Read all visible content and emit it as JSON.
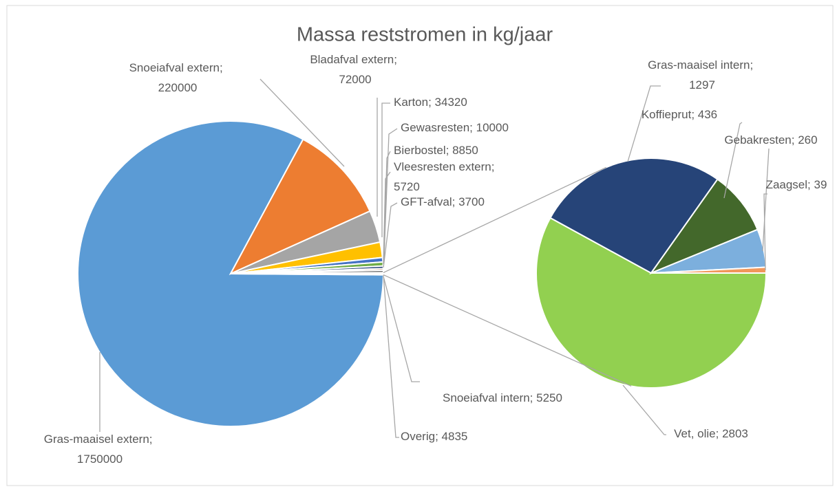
{
  "label_separator": "; ",
  "chart_data": [
    {
      "type": "pie",
      "title": "Massa reststromen in kg/jaar",
      "categories": [
        "Gras-maaisel extern",
        "Snoeiafval extern",
        "Bladafval extern",
        "Karton",
        "Gewasresten",
        "Bierbostel",
        "Vleesresten extern",
        "GFT-afval",
        "Snoeiafval intern",
        "Overig"
      ],
      "values": [
        1750000,
        220000,
        72000,
        34320,
        10000,
        8850,
        5720,
        3700,
        5250,
        4835
      ],
      "colors": [
        "#5b9bd5",
        "#ed7d31",
        "#a5a5a5",
        "#ffc000",
        "#4472c4",
        "#70ad47",
        "#264478",
        "#9e480e",
        "#636363",
        "#ffffff"
      ]
    },
    {
      "type": "pie",
      "categories": [
        "Vet, olie",
        "Gras-maaisel intern",
        "Koffieprut",
        "Gebakresten",
        "Zaagsel"
      ],
      "values": [
        2803,
        1297,
        436,
        260,
        39
      ],
      "colors": [
        "#92d050",
        "#264478",
        "#43682b",
        "#7cafdd",
        "#f1975a"
      ]
    }
  ]
}
